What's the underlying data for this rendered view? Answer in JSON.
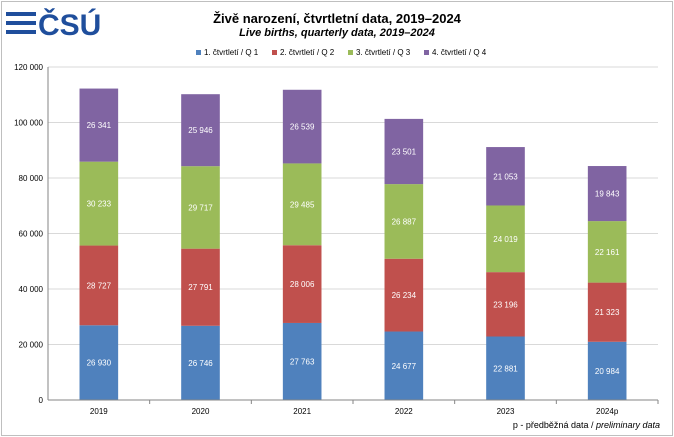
{
  "logo": {
    "text": "ČSÚ",
    "color": "#1f4e9c"
  },
  "title": "Živě narození, čtvrtletní data, 2019–2024",
  "subtitle": "Live births, quarterly data, 2019–2024",
  "note": {
    "prefix": "p - předběžná data / ",
    "italic": "preliminary data"
  },
  "chart_data": {
    "type": "bar",
    "stacked": true,
    "categories": [
      "2019",
      "2020",
      "2021",
      "2022",
      "2023",
      "2024p"
    ],
    "series": [
      {
        "name": "1. čtvrtletí / Q 1",
        "color": "#4f81bd",
        "values": [
          26930,
          26746,
          27763,
          24677,
          22881,
          20984
        ],
        "labels": [
          "26 930",
          "26 746",
          "27 763",
          "24 677",
          "22 881",
          "20 984"
        ]
      },
      {
        "name": "2. čtvrtletí / Q 2",
        "color": "#c0504d",
        "values": [
          28727,
          27791,
          28006,
          26234,
          23196,
          21323
        ],
        "labels": [
          "28 727",
          "27 791",
          "28 006",
          "26 234",
          "23 196",
          "21 323"
        ]
      },
      {
        "name": "3. čtvrtletí / Q 3",
        "color": "#9bbb59",
        "values": [
          30233,
          29717,
          29485,
          26887,
          24019,
          22161
        ],
        "labels": [
          "30 233",
          "29 717",
          "29 485",
          "26 887",
          "24 019",
          "22 161"
        ]
      },
      {
        "name": "4. čtvrtletí / Q 4",
        "color": "#8064a2",
        "values": [
          26341,
          25946,
          26539,
          23501,
          21053,
          19843
        ],
        "labels": [
          "26 341",
          "25 946",
          "26 539",
          "23 501",
          "21 053",
          "19 843"
        ]
      }
    ],
    "ylim": [
      0,
      120000
    ],
    "yticks": [
      0,
      20000,
      40000,
      60000,
      80000,
      100000,
      120000
    ],
    "ytick_labels": [
      "0",
      "20 000",
      "40 000",
      "60 000",
      "80 000",
      "100 000",
      "120 000"
    ],
    "grid": true,
    "legend_position": "top"
  }
}
